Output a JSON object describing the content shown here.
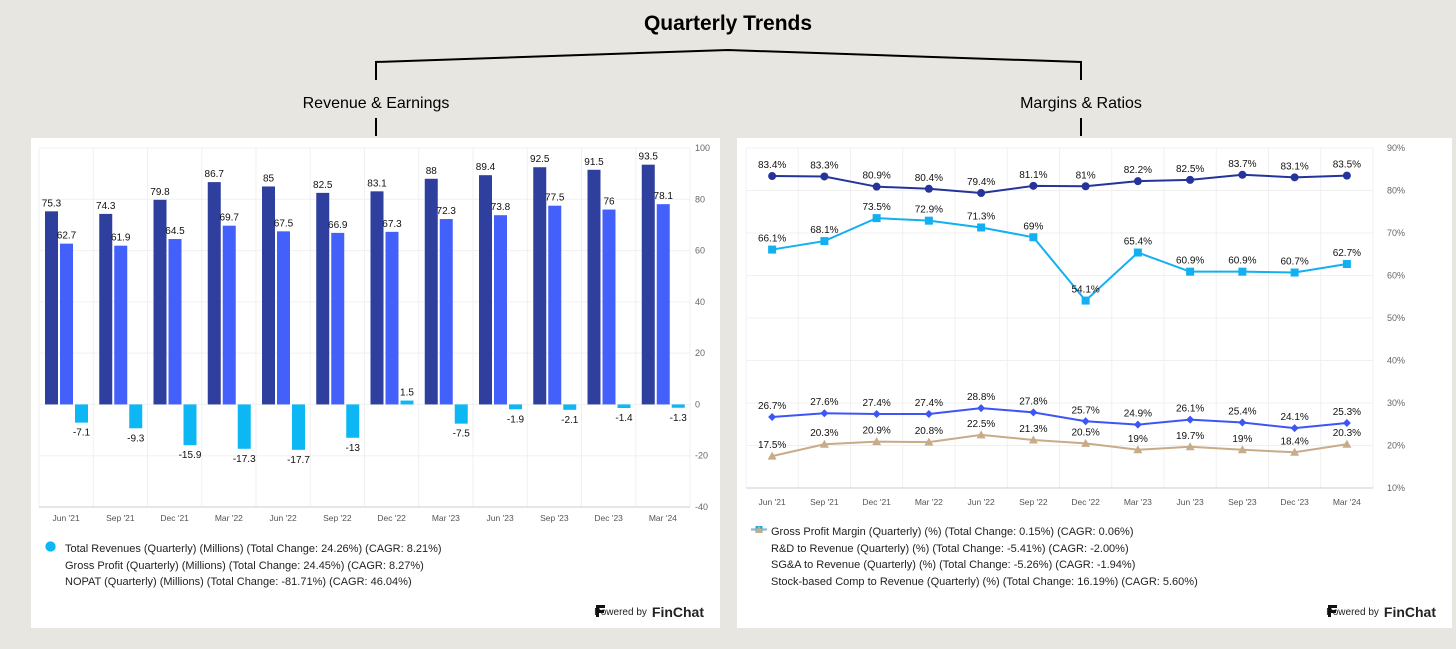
{
  "header": {
    "title": "Quarterly Trends",
    "left_subtitle": "Revenue & Earnings",
    "right_subtitle": "Margins & Ratios"
  },
  "powered_by": {
    "label": "Powered by",
    "brand": "FinChat"
  },
  "chart_data": [
    {
      "type": "bar",
      "categories": [
        "Jun '21",
        "Sep '21",
        "Dec '21",
        "Mar '22",
        "Jun '22",
        "Sep '22",
        "Dec '22",
        "Mar '23",
        "Jun '23",
        "Sep '23",
        "Dec '23",
        "Mar '24"
      ],
      "ylim": [
        -40,
        100
      ],
      "yticks": [
        "100",
        "80",
        "60",
        "40",
        "20",
        "0",
        "-20",
        "-40"
      ],
      "ytick_values": [
        100,
        80,
        60,
        40,
        20,
        0,
        -20,
        -40
      ],
      "grid": true,
      "legend_position": "bottom-left",
      "series": [
        {
          "name": "Total Revenues (Quarterly) (Millions) (Total Change: 24.26%) (CAGR: 8.21%)",
          "color": "#2e3f9e",
          "values": [
            75.3,
            74.3,
            79.8,
            86.7,
            85,
            82.5,
            83.1,
            88,
            89.4,
            92.5,
            91.5,
            93.5
          ]
        },
        {
          "name": "Gross Profit (Quarterly) (Millions) (Total Change: 24.45%) (CAGR: 8.27%)",
          "color": "#4460fb",
          "values": [
            62.7,
            61.9,
            64.5,
            69.7,
            67.5,
            66.9,
            67.3,
            72.3,
            73.8,
            77.5,
            76,
            78.1
          ]
        },
        {
          "name": "NOPAT (Quarterly) (Millions) (Total Change: -81.71%) (CAGR: 46.04%)",
          "color": "#0cb7f4",
          "values": [
            -7.1,
            -9.3,
            -15.9,
            -17.3,
            -17.7,
            -13,
            1.5,
            -7.5,
            -1.9,
            -2.1,
            -1.4,
            -1.3
          ]
        }
      ]
    },
    {
      "type": "line",
      "categories": [
        "Jun '21",
        "Sep '21",
        "Dec '21",
        "Mar '22",
        "Jun '22",
        "Sep '22",
        "Dec '22",
        "Mar '23",
        "Jun '23",
        "Sep '23",
        "Dec '23",
        "Mar '24"
      ],
      "ylim": [
        10,
        90
      ],
      "yticks": [
        "90%",
        "80%",
        "70%",
        "60%",
        "50%",
        "40%",
        "30%",
        "20%",
        "10%"
      ],
      "ytick_values": [
        90,
        80,
        70,
        60,
        50,
        40,
        30,
        20,
        10
      ],
      "grid": true,
      "legend_position": "bottom-left",
      "series": [
        {
          "name": "Gross Profit Margin (Quarterly) (%) (Total Change: 0.15%) (CAGR: 0.06%)",
          "color": "#25339a",
          "marker": "circle",
          "values": [
            83.4,
            83.3,
            80.9,
            80.4,
            79.4,
            81.1,
            81,
            82.2,
            82.5,
            83.7,
            83.1,
            83.5
          ]
        },
        {
          "name": "R&D to Revenue (Quarterly) (%) (Total Change: -5.41%) (CAGR: -2.00%)",
          "color": "#3d55f5",
          "marker": "diamond",
          "values": [
            26.7,
            27.6,
            27.4,
            27.4,
            28.8,
            27.8,
            25.7,
            24.9,
            26.1,
            25.4,
            24.1,
            25.3
          ]
        },
        {
          "name": "SG&A to Revenue (Quarterly) (%) (Total Change: -5.26%) (CAGR: -1.94%)",
          "color": "#12b0f0",
          "marker": "square",
          "values": [
            66.1,
            68.1,
            73.5,
            72.9,
            71.3,
            69,
            54.1,
            65.4,
            60.9,
            60.9,
            60.7,
            62.7
          ]
        },
        {
          "name": "Stock-based Comp to Revenue (Quarterly) (%) (Total Change: 16.19%) (CAGR: 5.60%)",
          "color": "#c8ab88",
          "marker": "triangle",
          "values": [
            17.5,
            20.3,
            20.9,
            20.8,
            22.5,
            21.3,
            20.5,
            19,
            19.7,
            19,
            18.4,
            20.3
          ]
        }
      ]
    }
  ]
}
